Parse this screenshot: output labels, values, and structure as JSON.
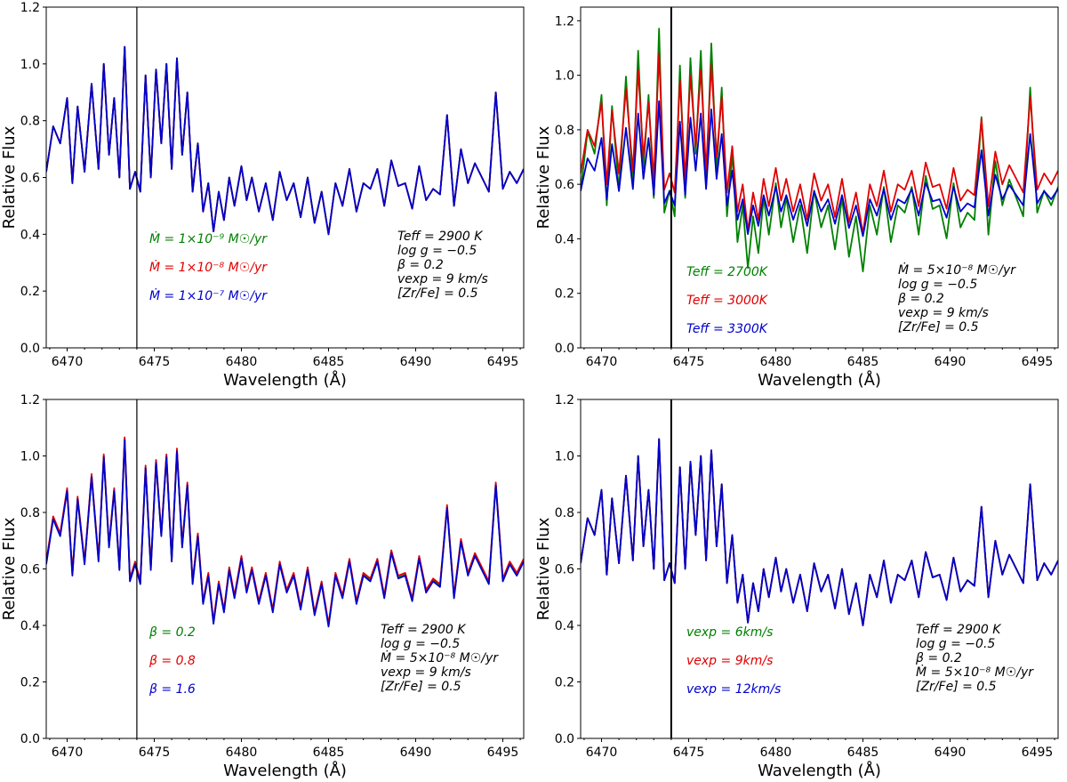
{
  "figure": {
    "type": "four-panel spectra comparison"
  },
  "colors": {
    "green": "#008000",
    "red": "#e00000",
    "blue": "#0000cc",
    "axis": "#000000"
  },
  "chart_data": [
    {
      "type": "line",
      "panel": "top-left",
      "xlabel": "Wavelength (Å)",
      "ylabel": "Relative Flux",
      "xlim": [
        6468.8,
        6496.2
      ],
      "ylim": [
        0.0,
        1.2
      ],
      "xticks": [
        "6470",
        "6475",
        "6480",
        "6485",
        "6490",
        "6495"
      ],
      "yticks": [
        "0.0",
        "0.2",
        "0.4",
        "0.6",
        "0.8",
        "1.0",
        "1.2"
      ],
      "vline_x": 6474.0,
      "legend": [
        "Ṁ = 1×10⁻⁹ M☉/yr",
        "Ṁ = 1×10⁻⁸ M☉/yr",
        "Ṁ = 1×10⁻⁷ M☉/yr"
      ],
      "params": [
        "Teff = 2900 K",
        "log g = −0.5",
        "β = 0.2",
        "vexp = 9 km/s",
        "[Zr/Fe] = 0.5"
      ],
      "series": [
        {
          "name": "Ṁ = 1×10⁻⁹ M☉/yr",
          "color": "green",
          "offset": 0.0,
          "scale": 1.0,
          "dip": 0.0
        },
        {
          "name": "Ṁ = 1×10⁻⁸ M☉/yr",
          "color": "red",
          "offset": 0.0,
          "scale": 1.0,
          "dip": 0.0
        },
        {
          "name": "Ṁ = 1×10⁻⁷ M☉/yr",
          "color": "blue",
          "offset": 0.0,
          "scale": 1.0,
          "dip": 0.0
        }
      ]
    },
    {
      "type": "line",
      "panel": "top-right",
      "xlabel": "Wavelength (Å)",
      "ylabel": "Relative Flux",
      "xlim": [
        6468.8,
        6496.2
      ],
      "ylim": [
        0.0,
        1.25
      ],
      "xticks": [
        "6470",
        "6475",
        "6480",
        "6485",
        "6490",
        "6495"
      ],
      "yticks": [
        "0.0",
        "0.2",
        "0.4",
        "0.6",
        "0.8",
        "1.0",
        "1.2"
      ],
      "vline_x": 6474.0,
      "legend": [
        "Teff = 2700K",
        "Teff = 3000K",
        "Teff = 3300K"
      ],
      "params": [
        "Ṁ = 5×10⁻⁸ M☉/yr",
        "log g = −0.5",
        "β = 0.2",
        "vexp = 9 km/s",
        "[Zr/Fe] = 0.5"
      ],
      "series": [
        {
          "name": "Teff = 2700K",
          "color": "green",
          "offset": -0.05,
          "scale": 1.35,
          "dip": 0.0
        },
        {
          "name": "Teff = 3000K",
          "color": "red",
          "offset": 0.02,
          "scale": 1.0,
          "dip": 0.0
        },
        {
          "name": "Teff = 3300K",
          "color": "blue",
          "offset": -0.04,
          "scale": 0.75,
          "dip": 0.0
        }
      ]
    },
    {
      "type": "line",
      "panel": "bottom-left",
      "xlabel": "Wavelength (Å)",
      "ylabel": "Relative Flux",
      "xlim": [
        6468.8,
        6496.2
      ],
      "ylim": [
        0.0,
        1.2
      ],
      "xticks": [
        "6470",
        "6475",
        "6480",
        "6485",
        "6490",
        "6495"
      ],
      "yticks": [
        "0.0",
        "0.2",
        "0.4",
        "0.6",
        "0.8",
        "1.0",
        "1.2"
      ],
      "vline_x": 6474.0,
      "legend": [
        "β = 0.2",
        "β = 0.8",
        "β = 1.6"
      ],
      "params": [
        "Teff = 2900 K",
        "log g = −0.5",
        "Ṁ = 5×10⁻⁸ M☉/yr",
        "vexp = 9 km/s",
        "[Zr/Fe] = 0.5"
      ],
      "series": [
        {
          "name": "β = 0.2",
          "color": "green",
          "offset": 0.0,
          "scale": 1.0,
          "dip": 0.0
        },
        {
          "name": "β = 0.8",
          "color": "red",
          "offset": 0.006,
          "scale": 1.0,
          "dip": 0.0
        },
        {
          "name": "β = 1.6",
          "color": "blue",
          "offset": -0.004,
          "scale": 1.0,
          "dip": 0.0
        }
      ]
    },
    {
      "type": "line",
      "panel": "bottom-right",
      "xlabel": "Wavelength (Å)",
      "ylabel": "Relative Flux",
      "xlim": [
        6468.8,
        6496.2
      ],
      "ylim": [
        0.0,
        1.2
      ],
      "xticks": [
        "6470",
        "6475",
        "6480",
        "6485",
        "6490",
        "6495"
      ],
      "yticks": [
        "0.0",
        "0.2",
        "0.4",
        "0.6",
        "0.8",
        "1.0",
        "1.2"
      ],
      "vline_x": 6474.0,
      "legend": [
        "vexp = 6km/s",
        "vexp = 9km/s",
        "vexp = 12km/s"
      ],
      "params": [
        "Teff = 2900 K",
        "log g = −0.5",
        "β = 0.2",
        "Ṁ = 5×10⁻⁸ M☉/yr",
        "[Zr/Fe] = 0.5"
      ],
      "series": [
        {
          "name": "vexp = 6km/s",
          "color": "green",
          "offset": 0.0,
          "scale": 1.0,
          "dip": 0.0
        },
        {
          "name": "vexp = 9km/s",
          "color": "red",
          "offset": 0.0,
          "scale": 1.0,
          "dip": 0.0
        },
        {
          "name": "vexp = 12km/s",
          "color": "blue",
          "offset": 0.0,
          "scale": 1.0,
          "dip": 0.0
        }
      ]
    }
  ],
  "base_spectrum": {
    "note": "shared synthetic spectrum shape, wavelength (Å) vs relative flux",
    "x": [
      6468.8,
      6469.2,
      6469.6,
      6470.0,
      6470.3,
      6470.6,
      6471.0,
      6471.4,
      6471.8,
      6472.1,
      6472.4,
      6472.7,
      6473.0,
      6473.3,
      6473.6,
      6473.9,
      6474.2,
      6474.5,
      6474.8,
      6475.1,
      6475.4,
      6475.7,
      6476.0,
      6476.3,
      6476.6,
      6476.9,
      6477.2,
      6477.5,
      6477.8,
      6478.1,
      6478.4,
      6478.7,
      6479.0,
      6479.3,
      6479.6,
      6480.0,
      6480.3,
      6480.6,
      6481.0,
      6481.4,
      6481.8,
      6482.2,
      6482.6,
      6483.0,
      6483.4,
      6483.8,
      6484.2,
      6484.6,
      6485.0,
      6485.4,
      6485.8,
      6486.2,
      6486.6,
      6487.0,
      6487.4,
      6487.8,
      6488.2,
      6488.6,
      6489.0,
      6489.4,
      6489.8,
      6490.2,
      6490.6,
      6491.0,
      6491.4,
      6491.8,
      6492.2,
      6492.6,
      6493.0,
      6493.4,
      6493.8,
      6494.2,
      6494.6,
      6495.0,
      6495.4,
      6495.8,
      6496.2
    ],
    "y": [
      0.62,
      0.78,
      0.72,
      0.88,
      0.58,
      0.85,
      0.62,
      0.93,
      0.63,
      1.0,
      0.68,
      0.88,
      0.6,
      1.06,
      0.56,
      0.62,
      0.55,
      0.96,
      0.6,
      0.98,
      0.72,
      1.0,
      0.63,
      1.02,
      0.68,
      0.9,
      0.55,
      0.72,
      0.48,
      0.58,
      0.41,
      0.55,
      0.45,
      0.6,
      0.5,
      0.64,
      0.52,
      0.6,
      0.48,
      0.58,
      0.45,
      0.62,
      0.52,
      0.58,
      0.46,
      0.6,
      0.44,
      0.55,
      0.4,
      0.58,
      0.5,
      0.63,
      0.48,
      0.58,
      0.56,
      0.63,
      0.5,
      0.66,
      0.57,
      0.58,
      0.49,
      0.64,
      0.52,
      0.56,
      0.54,
      0.82,
      0.5,
      0.7,
      0.58,
      0.65,
      0.6,
      0.55,
      0.9,
      0.56,
      0.62,
      0.58,
      0.63
    ]
  }
}
